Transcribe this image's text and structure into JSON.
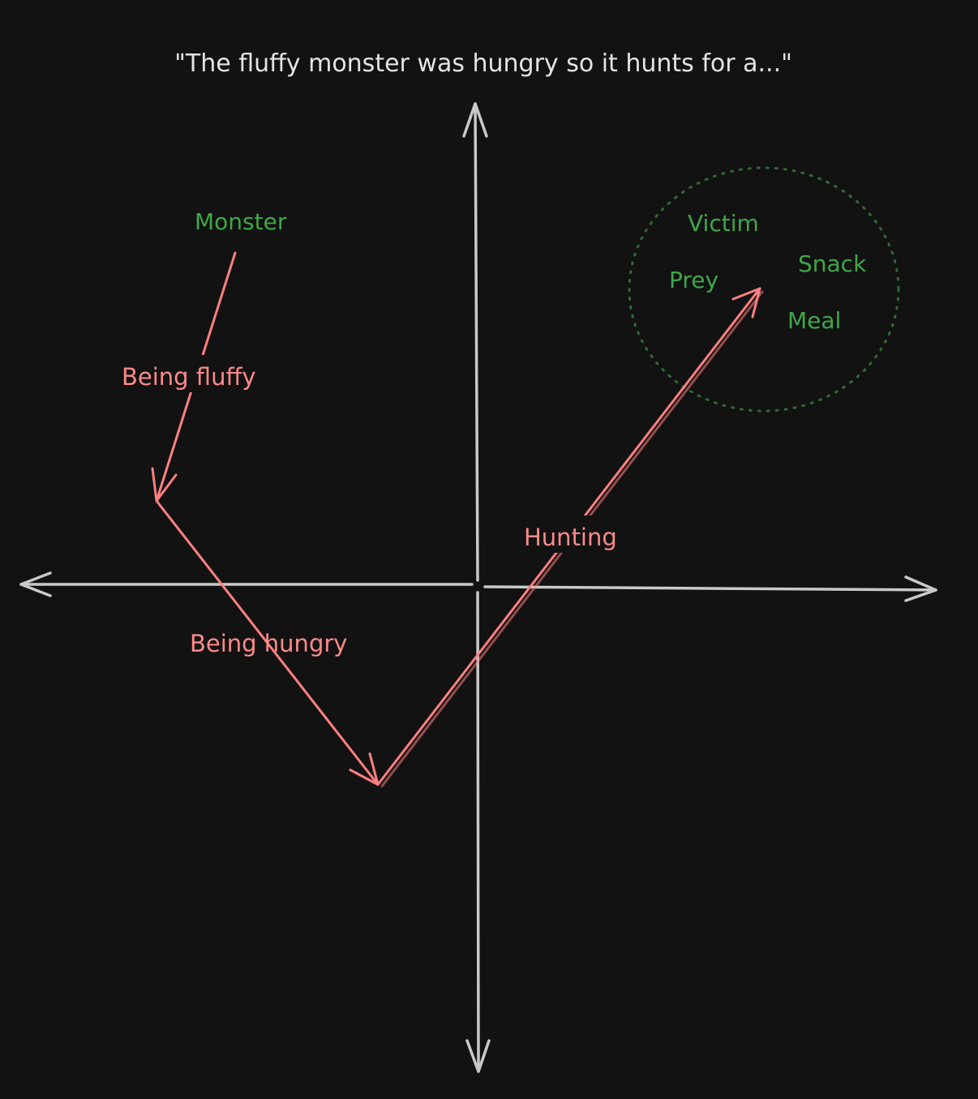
{
  "caption": "\"The fluffy monster was hungry so it hunts for a...\"",
  "start_word": "Monster",
  "steps": {
    "fluffy": "Being fluffy",
    "hungry": "Being hungry",
    "hunting": "Hunting"
  },
  "candidates": [
    "Victim",
    "Snack",
    "Prey",
    "Meal"
  ],
  "colors": {
    "background": "#121212",
    "axis": "#c9c9c9",
    "vector": "#ff8080",
    "word": "#3fa748",
    "cluster": "#2f6b34",
    "caption": "#e4e4e4"
  }
}
